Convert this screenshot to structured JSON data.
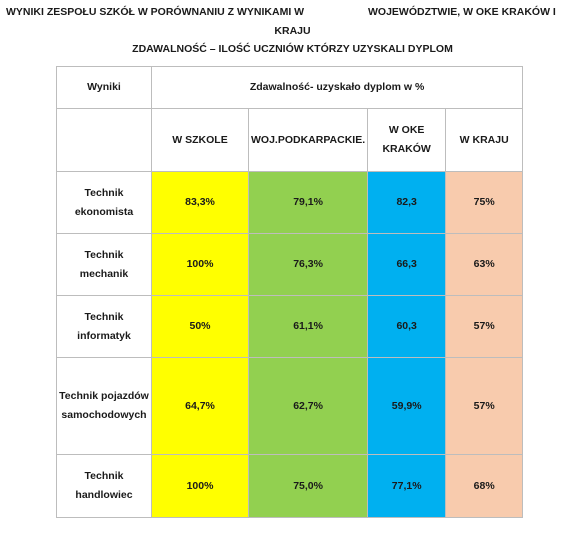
{
  "header": {
    "line1_left": "WYNIKI ZESPOŁU SZKÓŁ  W PORÓWNANIU Z WYNIKAMI W",
    "line1_right": "WOJEWÓDZTWIE, W OKE KRAKÓW I",
    "line2": "KRAJU",
    "line3": "ZDAWALNOŚĆ – ILOŚĆ UCZNIÓW KTÓRZY UZYSKALI DYPLOM"
  },
  "table": {
    "col_wyniki": "Wyniki",
    "group_header": "Zdawalność- uzyskało dyplom w %",
    "columns": [
      "W SZKOLE",
      "WOJ.PODKARPACKIE.",
      "W OKE KRAKÓW",
      "W KRAJU"
    ],
    "rows": [
      {
        "name": "Technik ekonomista",
        "values": [
          "83,3%",
          "79,1%",
          "82,3",
          "75%"
        ]
      },
      {
        "name": "Technik mechanik",
        "values": [
          "100%",
          "76,3%",
          "66,3",
          "63%"
        ]
      },
      {
        "name": "Technik informatyk",
        "values": [
          "50%",
          "61,1%",
          "60,3",
          "57%"
        ]
      },
      {
        "name": "Technik pojazdów samochodowych",
        "values": [
          "64,7%",
          "62,7%",
          "59,9%",
          "57%"
        ]
      },
      {
        "name": "Technik handlowiec",
        "values": [
          "100%",
          "75,0%",
          "77,1%",
          "68%"
        ]
      }
    ]
  },
  "colors": {
    "szkole": "#ffff00",
    "podkarpackie": "#92d050",
    "oke": "#00b0f0",
    "kraj": "#f8cbad"
  }
}
